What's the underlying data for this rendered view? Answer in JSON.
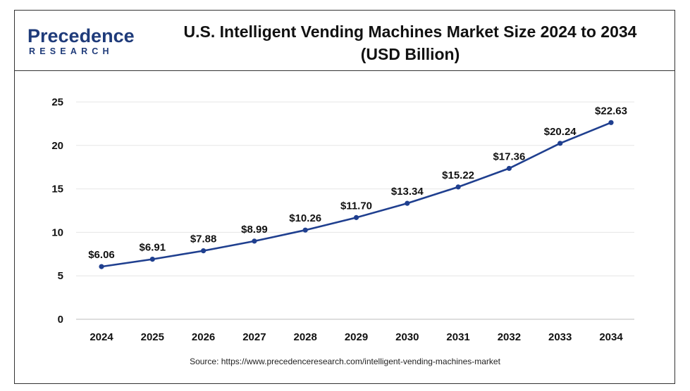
{
  "brand": {
    "name_top": "Precedence",
    "name_bottom": "RESEARCH"
  },
  "title_line1": "U.S. Intelligent Vending Machines Market Size 2024 to 2034",
  "title_line2": "(USD Billion)",
  "source": "Source: https://www.precedenceresearch.com/intelligent-vending-machines-market",
  "chart_data": {
    "type": "line",
    "title": "U.S. Intelligent Vending Machines Market Size 2024 to 2034 (USD Billion)",
    "xlabel": "",
    "ylabel": "",
    "ylim": [
      0,
      25
    ],
    "yticks": [
      0,
      5,
      10,
      15,
      20,
      25
    ],
    "grid": true,
    "legend": "none",
    "color": "#1f3f8f",
    "categories": [
      "2024",
      "2025",
      "2026",
      "2027",
      "2028",
      "2029",
      "2030",
      "2031",
      "2032",
      "2033",
      "2034"
    ],
    "series": [
      {
        "values": [
          6.06,
          6.91,
          7.88,
          8.99,
          10.26,
          11.7,
          13.34,
          15.22,
          17.36,
          20.24,
          22.63
        ],
        "labels": [
          "$6.06",
          "$6.91",
          "$7.88",
          "$8.99",
          "$10.26",
          "$11.70",
          "$13.34",
          "$15.22",
          "$17.36",
          "$20.24",
          "$22.63"
        ]
      }
    ]
  }
}
